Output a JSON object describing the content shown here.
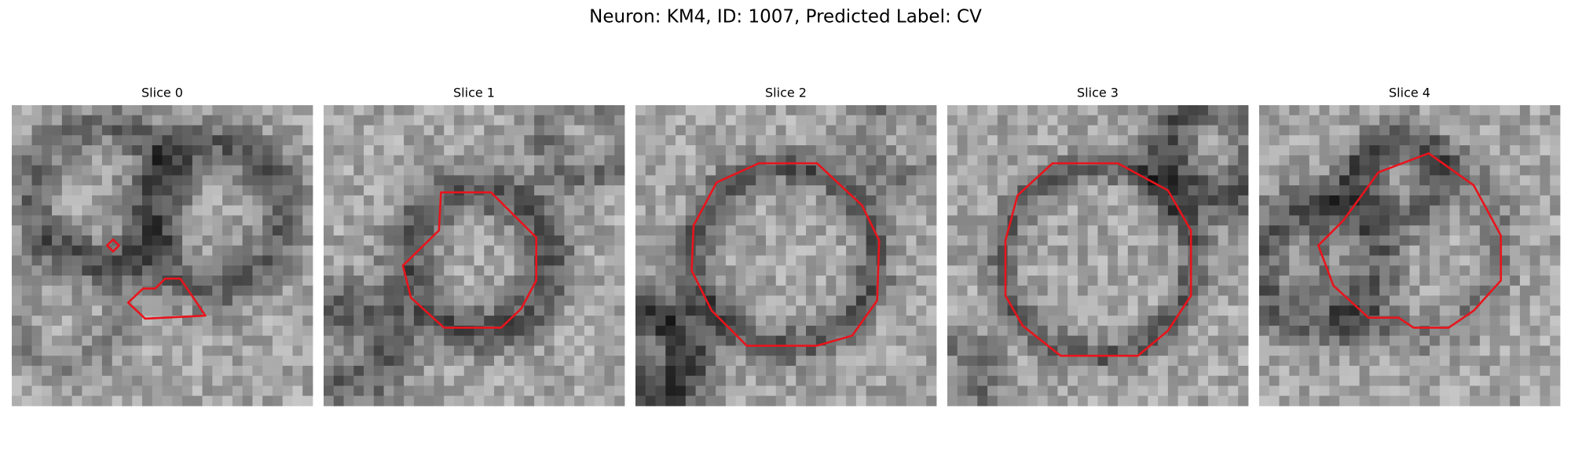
{
  "title": "Neuron: KM4, ID: 1007, Predicted Label: CV",
  "panels": [
    {
      "title": "Slice 0"
    },
    {
      "title": "Slice 1"
    },
    {
      "title": "Slice 2"
    },
    {
      "title": "Slice 3"
    },
    {
      "title": "Slice 4"
    }
  ]
}
